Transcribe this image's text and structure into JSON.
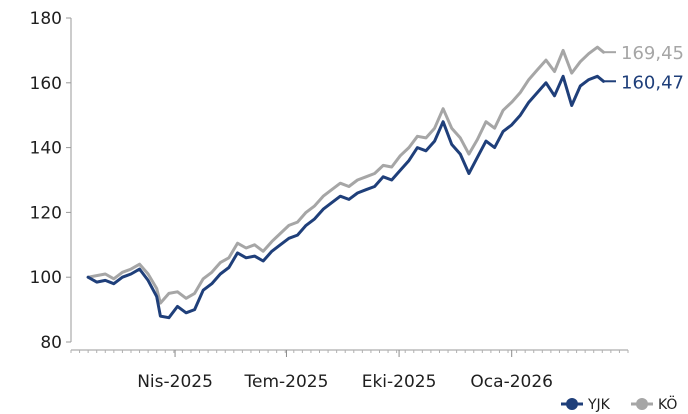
{
  "chart_data": {
    "type": "line",
    "title": "",
    "xlabel": "",
    "ylabel": "",
    "ylim": [
      80,
      180
    ],
    "yticks": [
      80,
      100,
      120,
      140,
      160,
      180
    ],
    "xticks": [
      {
        "date": "2025-04-01",
        "label": "Nis-2025"
      },
      {
        "date": "2025-07-01",
        "label": "Tem-2025"
      },
      {
        "date": "2025-10-01",
        "label": "Eki-2025"
      },
      {
        "date": "2026-01-01",
        "label": "Oca-2026"
      }
    ],
    "grid": false,
    "legend_position": "bottom-right",
    "series": [
      {
        "name": "YJK",
        "color": "#1f3f7a",
        "end_label": "160,47",
        "points": [
          [
            "2025-01-20",
            100
          ],
          [
            "2025-01-27",
            98.5
          ],
          [
            "2025-02-03",
            99
          ],
          [
            "2025-02-10",
            98
          ],
          [
            "2025-02-17",
            100
          ],
          [
            "2025-02-24",
            101
          ],
          [
            "2025-03-03",
            102.5
          ],
          [
            "2025-03-10",
            99
          ],
          [
            "2025-03-17",
            94
          ],
          [
            "2025-03-20",
            88
          ],
          [
            "2025-03-27",
            87.5
          ],
          [
            "2025-04-03",
            91
          ],
          [
            "2025-04-10",
            89
          ],
          [
            "2025-04-17",
            90
          ],
          [
            "2025-04-24",
            96
          ],
          [
            "2025-05-01",
            98
          ],
          [
            "2025-05-08",
            101
          ],
          [
            "2025-05-15",
            103
          ],
          [
            "2025-05-22",
            107.5
          ],
          [
            "2025-05-29",
            106
          ],
          [
            "2025-06-05",
            106.5
          ],
          [
            "2025-06-12",
            105
          ],
          [
            "2025-06-19",
            108
          ],
          [
            "2025-06-26",
            110
          ],
          [
            "2025-07-03",
            112
          ],
          [
            "2025-07-10",
            113
          ],
          [
            "2025-07-17",
            116
          ],
          [
            "2025-07-24",
            118
          ],
          [
            "2025-07-31",
            121
          ],
          [
            "2025-08-07",
            123
          ],
          [
            "2025-08-14",
            125
          ],
          [
            "2025-08-21",
            124
          ],
          [
            "2025-08-28",
            126
          ],
          [
            "2025-09-04",
            127
          ],
          [
            "2025-09-11",
            128
          ],
          [
            "2025-09-18",
            131
          ],
          [
            "2025-09-25",
            130
          ],
          [
            "2025-10-02",
            133
          ],
          [
            "2025-10-09",
            136
          ],
          [
            "2025-10-16",
            140
          ],
          [
            "2025-10-23",
            139
          ],
          [
            "2025-10-30",
            142
          ],
          [
            "2025-11-06",
            148
          ],
          [
            "2025-11-13",
            141
          ],
          [
            "2025-11-20",
            138
          ],
          [
            "2025-11-27",
            132
          ],
          [
            "2025-12-04",
            137
          ],
          [
            "2025-12-11",
            142
          ],
          [
            "2025-12-18",
            140
          ],
          [
            "2025-12-25",
            145
          ],
          [
            "2026-01-01",
            147
          ],
          [
            "2026-01-08",
            150
          ],
          [
            "2026-01-15",
            154
          ],
          [
            "2026-01-22",
            157
          ],
          [
            "2026-01-29",
            160
          ],
          [
            "2026-02-05",
            156
          ],
          [
            "2026-02-12",
            162
          ],
          [
            "2026-02-19",
            153
          ],
          [
            "2026-02-26",
            159
          ],
          [
            "2026-03-05",
            161
          ],
          [
            "2026-03-12",
            162
          ],
          [
            "2026-03-17",
            160.47
          ]
        ]
      },
      {
        "name": "KÖ",
        "color": "#a6a6a6",
        "end_label": "169,45",
        "points": [
          [
            "2025-01-20",
            100
          ],
          [
            "2025-01-27",
            100.5
          ],
          [
            "2025-02-03",
            101
          ],
          [
            "2025-02-10",
            99.5
          ],
          [
            "2025-02-17",
            101.5
          ],
          [
            "2025-02-24",
            102.5
          ],
          [
            "2025-03-03",
            104
          ],
          [
            "2025-03-10",
            101
          ],
          [
            "2025-03-17",
            96.5
          ],
          [
            "2025-03-20",
            92
          ],
          [
            "2025-03-27",
            95
          ],
          [
            "2025-04-03",
            95.5
          ],
          [
            "2025-04-10",
            93.5
          ],
          [
            "2025-04-17",
            95
          ],
          [
            "2025-04-24",
            99.5
          ],
          [
            "2025-05-01",
            101.5
          ],
          [
            "2025-05-08",
            104.5
          ],
          [
            "2025-05-15",
            106
          ],
          [
            "2025-05-22",
            110.5
          ],
          [
            "2025-05-29",
            109
          ],
          [
            "2025-06-05",
            110
          ],
          [
            "2025-06-12",
            108
          ],
          [
            "2025-06-19",
            111
          ],
          [
            "2025-06-26",
            113.5
          ],
          [
            "2025-07-03",
            116
          ],
          [
            "2025-07-10",
            117
          ],
          [
            "2025-07-17",
            120
          ],
          [
            "2025-07-24",
            122
          ],
          [
            "2025-07-31",
            125
          ],
          [
            "2025-08-07",
            127
          ],
          [
            "2025-08-14",
            129
          ],
          [
            "2025-08-21",
            128
          ],
          [
            "2025-08-28",
            130
          ],
          [
            "2025-09-04",
            131
          ],
          [
            "2025-09-11",
            132
          ],
          [
            "2025-09-18",
            134.5
          ],
          [
            "2025-09-25",
            134
          ],
          [
            "2025-10-02",
            137.5
          ],
          [
            "2025-10-09",
            140
          ],
          [
            "2025-10-16",
            143.5
          ],
          [
            "2025-10-23",
            143
          ],
          [
            "2025-10-30",
            146
          ],
          [
            "2025-11-06",
            152
          ],
          [
            "2025-11-13",
            146
          ],
          [
            "2025-11-20",
            143
          ],
          [
            "2025-11-27",
            138
          ],
          [
            "2025-12-04",
            142.5
          ],
          [
            "2025-12-11",
            148
          ],
          [
            "2025-12-18",
            146
          ],
          [
            "2025-12-25",
            151.5
          ],
          [
            "2026-01-01",
            154
          ],
          [
            "2026-01-08",
            157
          ],
          [
            "2026-01-15",
            161
          ],
          [
            "2026-01-22",
            164
          ],
          [
            "2026-01-29",
            167
          ],
          [
            "2026-02-05",
            163.5
          ],
          [
            "2026-02-12",
            170
          ],
          [
            "2026-02-19",
            163
          ],
          [
            "2026-02-26",
            166.5
          ],
          [
            "2026-03-05",
            169
          ],
          [
            "2026-03-12",
            171
          ],
          [
            "2026-03-17",
            169.45
          ]
        ]
      }
    ]
  }
}
